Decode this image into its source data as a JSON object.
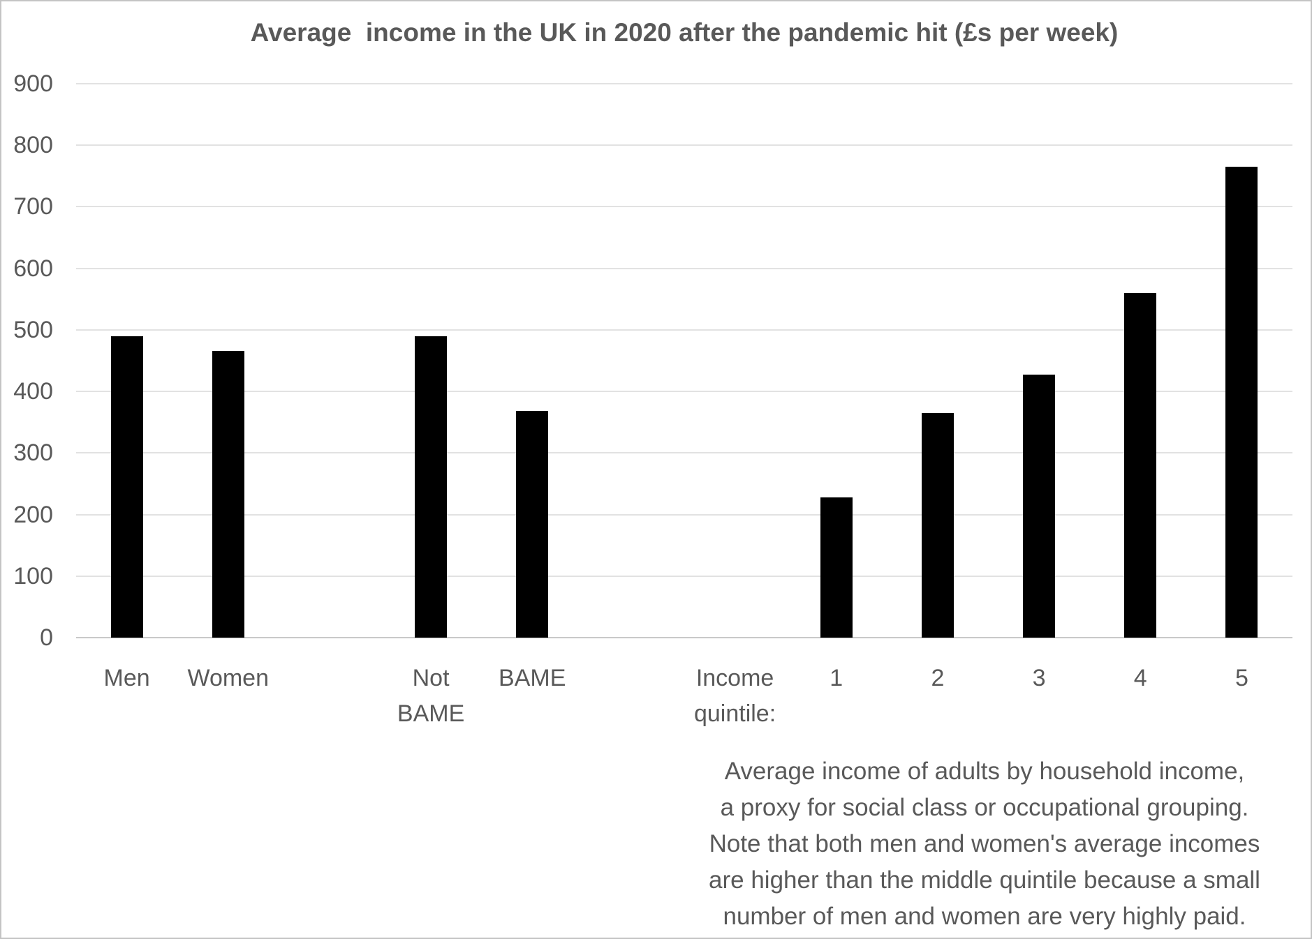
{
  "chart_data": {
    "type": "bar",
    "title": "Average  income in the UK in 2020 after the pandemic hit (£s per week)",
    "xlabel": "",
    "ylabel": "",
    "ylim": [
      0,
      900
    ],
    "ytick_step": 100,
    "yticks": [
      900,
      800,
      700,
      600,
      500,
      400,
      300,
      200,
      100,
      0
    ],
    "grid": "horizontal",
    "legend_position": "none",
    "bar_color": "#000000",
    "categories": [
      "Men",
      "Women",
      "",
      "Not BAME",
      "BAME",
      "",
      "Income quintile:",
      "1",
      "2",
      "3",
      "4",
      "5"
    ],
    "values": [
      490,
      466,
      null,
      490,
      368,
      null,
      null,
      228,
      365,
      427,
      560,
      765
    ],
    "annotation_lines": [
      "Average income of adults by household income,",
      "a proxy for social class or occupational grouping.",
      "Note that both men and women's average incomes",
      "are higher than the middle quintile because a small",
      "number of men and women are very highly paid."
    ]
  },
  "colors": {
    "bar": "#000000",
    "gridline": "#e2e2e2",
    "axis_line": "#c9c9c9",
    "text": "#595959",
    "background": "#ffffff",
    "border": "#c4c4c4"
  }
}
